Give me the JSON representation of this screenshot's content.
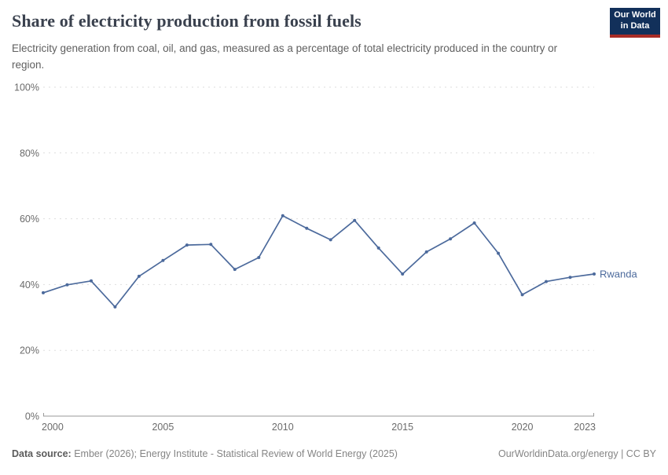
{
  "header": {
    "title": "Share of electricity production from fossil fuels",
    "subtitle": "Electricity generation from coal, oil, and gas, measured as a percentage of total electricity produced in the country or region.",
    "logo": {
      "line1": "Our World",
      "line2": "in Data",
      "bg_color": "#12305a",
      "stripe_color": "#a82c26"
    }
  },
  "footer": {
    "source_label": "Data source:",
    "source_text": " Ember (2026); Energy Institute - Statistical Review of World Energy (2025)",
    "right_text": "OurWorldinData.org/energy | CC BY"
  },
  "chart_data": {
    "type": "line",
    "title": "Share of electricity production from fossil fuels",
    "x": [
      2000,
      2001,
      2002,
      2003,
      2004,
      2005,
      2006,
      2007,
      2008,
      2009,
      2010,
      2011,
      2012,
      2013,
      2014,
      2015,
      2016,
      2017,
      2018,
      2019,
      2020,
      2021,
      2022,
      2023
    ],
    "series": [
      {
        "name": "Rwanda",
        "color": "#4c6a9c",
        "values": [
          37.5,
          39.9,
          41.1,
          33.2,
          42.5,
          47.3,
          52.0,
          52.2,
          44.6,
          48.2,
          60.9,
          57.1,
          53.6,
          59.5,
          51.1,
          43.2,
          49.9,
          53.9,
          58.7,
          49.5,
          36.9,
          40.9,
          42.2,
          43.2
        ]
      }
    ],
    "ylim": [
      0,
      100
    ],
    "yticks": [
      0,
      20,
      40,
      60,
      80,
      100
    ],
    "y_suffix": "%",
    "xticks": [
      2000,
      2005,
      2010,
      2015,
      2020,
      2023
    ],
    "grid": "horizontal-dashed",
    "grid_color": "#dedede",
    "axis_color": "#999999",
    "legend": "end-of-line-label"
  }
}
